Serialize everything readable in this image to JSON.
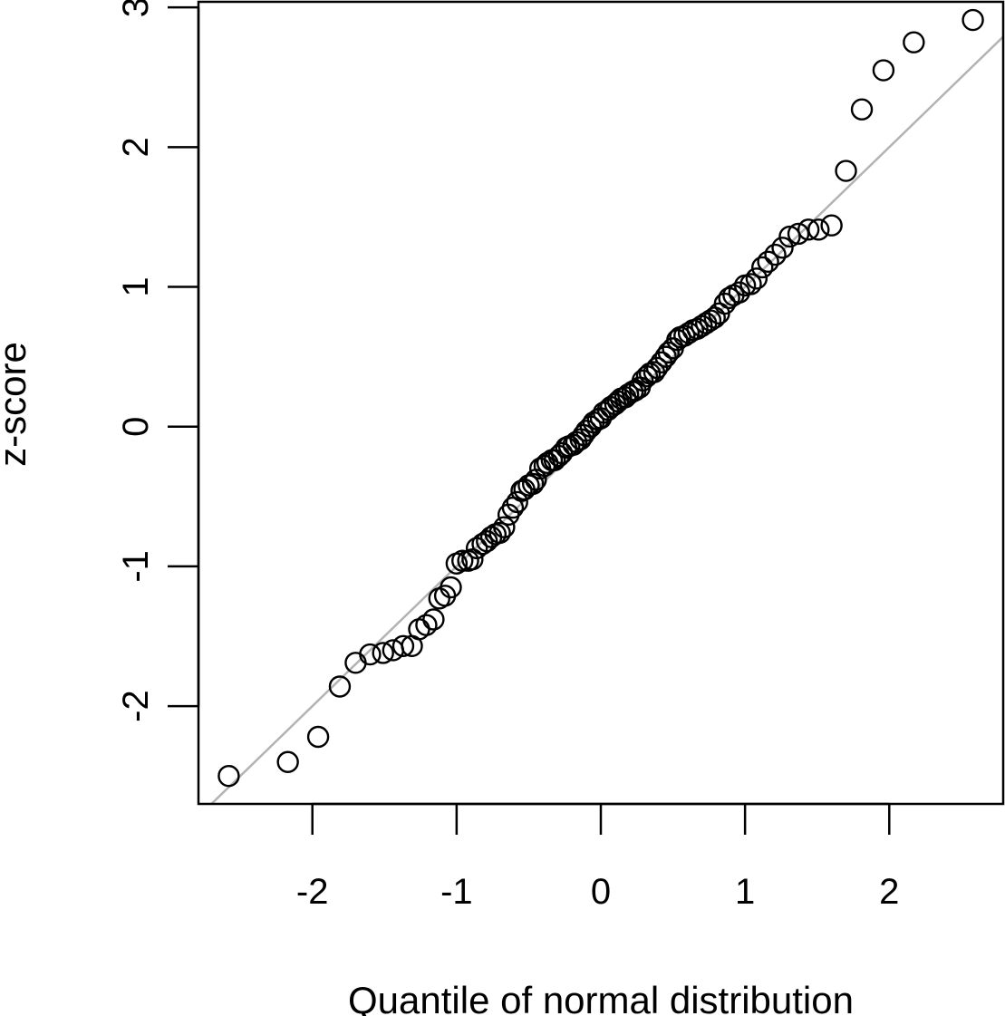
{
  "chart_data": {
    "type": "scatter",
    "title": "",
    "xlabel": "Quantile of normal distribution",
    "ylabel": "z-score",
    "xlim": [
      -2.79,
      2.79
    ],
    "ylim": [
      -2.7,
      3.04
    ],
    "x_ticks": [
      -2,
      -1,
      0,
      1,
      2
    ],
    "x_tick_labels": [
      "-2",
      "-1",
      "0",
      "1",
      "2"
    ],
    "y_ticks": [
      -2,
      -1,
      0,
      1,
      2,
      3
    ],
    "y_tick_labels": [
      "-2",
      "-1",
      "0",
      "1",
      "2",
      "3"
    ],
    "grid": false,
    "reference_line": {
      "intercept": 0,
      "slope": 1.0,
      "color": "#b3b3b3"
    },
    "marker": {
      "shape": "open-circle",
      "color": "#000000"
    },
    "series": [
      {
        "name": "z-scores",
        "x": [
          -2.58,
          -2.17,
          -1.96,
          -1.81,
          -1.7,
          -1.6,
          -1.51,
          -1.44,
          -1.37,
          -1.31,
          -1.26,
          -1.21,
          -1.16,
          -1.12,
          -1.08,
          -1.04,
          -1.0,
          -0.96,
          -0.92,
          -0.89,
          -0.86,
          -0.82,
          -0.79,
          -0.76,
          -0.73,
          -0.7,
          -0.67,
          -0.64,
          -0.61,
          -0.58,
          -0.55,
          -0.53,
          -0.5,
          -0.47,
          -0.45,
          -0.42,
          -0.39,
          -0.37,
          -0.34,
          -0.32,
          -0.29,
          -0.27,
          -0.24,
          -0.22,
          -0.19,
          -0.17,
          -0.14,
          -0.12,
          -0.1,
          -0.07,
          -0.05,
          -0.02,
          0.0,
          0.02,
          0.05,
          0.07,
          0.1,
          0.12,
          0.14,
          0.17,
          0.19,
          0.22,
          0.24,
          0.27,
          0.29,
          0.32,
          0.34,
          0.37,
          0.39,
          0.42,
          0.45,
          0.47,
          0.5,
          0.53,
          0.55,
          0.58,
          0.61,
          0.64,
          0.67,
          0.7,
          0.73,
          0.76,
          0.79,
          0.82,
          0.86,
          0.89,
          0.92,
          0.96,
          1.0,
          1.04,
          1.08,
          1.12,
          1.16,
          1.21,
          1.26,
          1.31,
          1.37,
          1.44,
          1.51,
          1.6,
          1.7,
          1.81,
          1.96,
          2.17,
          2.58
        ],
        "y": [
          -2.5,
          -2.4,
          -2.22,
          -1.86,
          -1.69,
          -1.63,
          -1.62,
          -1.6,
          -1.57,
          -1.57,
          -1.45,
          -1.42,
          -1.38,
          -1.23,
          -1.21,
          -1.15,
          -0.98,
          -0.96,
          -0.96,
          -0.95,
          -0.87,
          -0.84,
          -0.82,
          -0.79,
          -0.77,
          -0.76,
          -0.72,
          -0.63,
          -0.58,
          -0.54,
          -0.46,
          -0.45,
          -0.42,
          -0.41,
          -0.38,
          -0.3,
          -0.28,
          -0.26,
          -0.24,
          -0.24,
          -0.21,
          -0.19,
          -0.15,
          -0.14,
          -0.13,
          -0.11,
          -0.09,
          -0.06,
          -0.03,
          0.0,
          0.03,
          0.05,
          0.06,
          0.1,
          0.12,
          0.14,
          0.16,
          0.18,
          0.2,
          0.21,
          0.23,
          0.25,
          0.26,
          0.28,
          0.33,
          0.36,
          0.38,
          0.39,
          0.42,
          0.46,
          0.5,
          0.53,
          0.56,
          0.62,
          0.64,
          0.65,
          0.67,
          0.69,
          0.7,
          0.72,
          0.74,
          0.76,
          0.78,
          0.81,
          0.88,
          0.92,
          0.94,
          0.96,
          1.01,
          1.02,
          1.06,
          1.14,
          1.18,
          1.23,
          1.28,
          1.36,
          1.38,
          1.41,
          1.41,
          1.44,
          1.83,
          2.27,
          2.55,
          2.75,
          2.91
        ]
      }
    ]
  }
}
